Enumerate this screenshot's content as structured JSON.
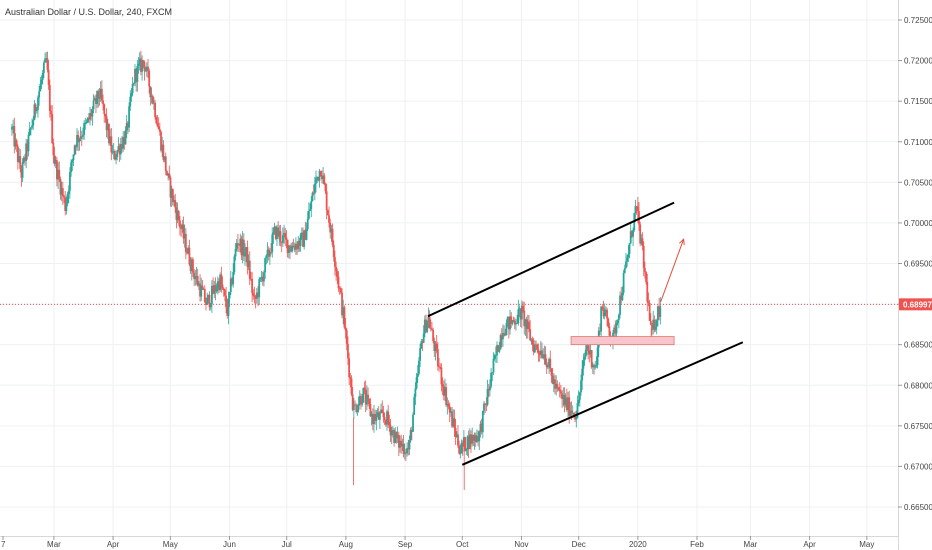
{
  "chart_data": {
    "type": "candlestick",
    "title": "Australian Dollar / U.S. Dollar, 240, FXCM",
    "current_price": 0.68997,
    "current_price_label": "0.68997",
    "ylim": [
      0.6625,
      0.7275
    ],
    "y_ticks": [
      "0.72500",
      "0.72000",
      "0.71500",
      "0.71000",
      "0.70500",
      "0.70000",
      "0.69500",
      "0.69000",
      "0.68500",
      "0.68000",
      "0.67500",
      "0.67000",
      "0.66500"
    ],
    "x_ticks": [
      "7",
      "Mar",
      "Apr",
      "May",
      "Jun",
      "Jul",
      "Aug",
      "Sep",
      "Oct",
      "Nov",
      "Dec",
      "2020",
      "Feb",
      "Mar",
      "Apr",
      "May"
    ],
    "grid": true,
    "colors": {
      "up": "#26a69a",
      "down": "#ef5350",
      "trendline": "#000000",
      "arrow": "#e74c3c",
      "zone": "#f7c5cc",
      "price_line": "#ef5350"
    },
    "path": [
      [
        "Feb 7",
        0.7115
      ],
      [
        "Feb 12",
        0.706
      ],
      [
        "Feb 20",
        0.715
      ],
      [
        "Feb 25",
        0.72
      ],
      [
        "Mar 1",
        0.708
      ],
      [
        "Mar 7",
        0.702
      ],
      [
        "Mar 12",
        0.71
      ],
      [
        "Mar 18",
        0.712
      ],
      [
        "Mar 25",
        0.716
      ],
      [
        "Apr 1",
        0.708
      ],
      [
        "Apr 8",
        0.711
      ],
      [
        "Apr 12",
        0.718
      ],
      [
        "Apr 17",
        0.72
      ],
      [
        "Apr 23",
        0.714
      ],
      [
        "Apr 30",
        0.705
      ],
      [
        "May 7",
        0.699
      ],
      [
        "May 13",
        0.694
      ],
      [
        "May 20",
        0.69
      ],
      [
        "May 27",
        0.693
      ],
      [
        "May 31",
        0.689
      ],
      [
        "Jun 5",
        0.698
      ],
      [
        "Jun 10",
        0.696
      ],
      [
        "Jun 14",
        0.69
      ],
      [
        "Jun 20",
        0.695
      ],
      [
        "Jun 25",
        0.699
      ],
      [
        "Jul 3",
        0.697
      ],
      [
        "Jul 10",
        0.698
      ],
      [
        "Jul 16",
        0.705
      ],
      [
        "Jul 19",
        0.707
      ],
      [
        "Jul 26",
        0.696
      ],
      [
        "Jul 31",
        0.688
      ],
      [
        "Aug 5",
        0.677
      ],
      [
        "Aug 10",
        0.679
      ],
      [
        "Aug 15",
        0.676
      ],
      [
        "Aug 22",
        0.676
      ],
      [
        "Aug 28",
        0.673
      ],
      [
        "Sep 3",
        0.672
      ],
      [
        "Sep 10",
        0.686
      ],
      [
        "Sep 13",
        0.6885
      ],
      [
        "Sep 18",
        0.683
      ],
      [
        "Sep 24",
        0.677
      ],
      [
        "Sep 30",
        0.672
      ],
      [
        "Oct 3",
        0.673
      ],
      [
        "Oct 10",
        0.674
      ],
      [
        "Oct 17",
        0.682
      ],
      [
        "Oct 22",
        0.687
      ],
      [
        "Oct 28",
        0.688
      ],
      [
        "Nov 1",
        0.689
      ],
      [
        "Nov 7",
        0.685
      ],
      [
        "Nov 13",
        0.684
      ],
      [
        "Nov 19",
        0.6795
      ],
      [
        "Nov 25",
        0.6775
      ],
      [
        "Nov 30",
        0.6765
      ],
      [
        "Dec 5",
        0.685
      ],
      [
        "Dec 10",
        0.682
      ],
      [
        "Dec 13",
        0.69
      ],
      [
        "Dec 19",
        0.6855
      ],
      [
        "Dec 26",
        0.695
      ],
      [
        "Dec 31",
        0.702
      ],
      [
        "Jan 3",
        0.697
      ],
      [
        "Jan 6",
        0.691
      ],
      [
        "Jan 8",
        0.686
      ],
      [
        "Jan 10",
        0.688
      ],
      [
        "Jan 13",
        0.69
      ]
    ],
    "wicks": {
      "Jan 1 high": 0.7032,
      "Jan 8 low": 0.685,
      "Aug 5 low": 0.6677,
      "Oct 2 low": 0.6671
    },
    "annotations": {
      "upper_trendline": [
        [
          "Sep 13",
          0.6885
        ],
        [
          "Jan 20",
          0.7025
        ]
      ],
      "lower_trendline": [
        [
          "Oct 1",
          0.6702
        ],
        [
          "Feb 25",
          0.6853
        ]
      ],
      "zone": {
        "from": "Nov 27",
        "to": "Jan 20",
        "low": 0.685,
        "high": 0.686
      },
      "arrow": [
        [
          "Jan 13",
          0.6903
        ],
        [
          "Jan 25",
          0.698
        ]
      ]
    }
  }
}
